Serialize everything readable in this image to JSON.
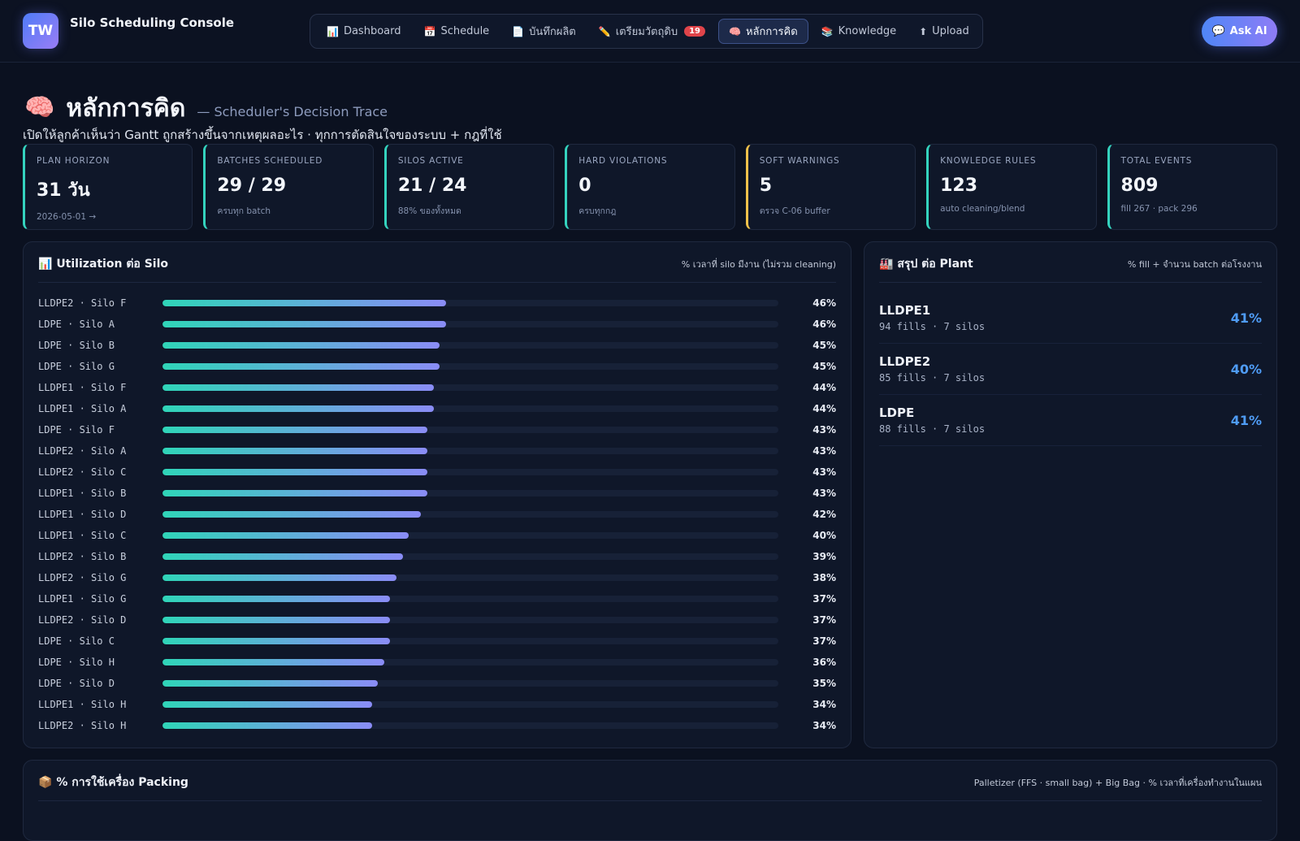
{
  "header": {
    "logo": "TW",
    "title": "Silo Scheduling Console",
    "ask_ai": "Ask AI",
    "ask_ai_icon": "💬"
  },
  "nav": [
    {
      "icon": "📊",
      "label": "Dashboard"
    },
    {
      "icon": "📅",
      "label": "Schedule"
    },
    {
      "icon": "📄",
      "label": "บันทึกผลิต"
    },
    {
      "icon": "✏️",
      "label": "เตรียมวัตถุดิบ",
      "badge": "19"
    },
    {
      "icon": "🧠",
      "label": "หลักการคิด",
      "active": true
    },
    {
      "icon": "📚",
      "label": "Knowledge"
    },
    {
      "icon": "⬆",
      "label": "Upload"
    }
  ],
  "page": {
    "icon": "🧠",
    "title": "หลักการคิด",
    "subtitle": "— Scheduler's Decision Trace",
    "description": "เปิดให้ลูกค้าเห็นว่า Gantt ถูกสร้างขึ้นจากเหตุผลอะไร · ทุกการตัดสินใจของระบบ + กฎที่ใช้"
  },
  "stats": [
    {
      "label": "PLAN HORIZON",
      "value": "31 วัน",
      "sub": "2026-05-01 →"
    },
    {
      "label": "BATCHES SCHEDULED",
      "value": "29 / 29",
      "sub": "ครบทุก batch"
    },
    {
      "label": "SILOS ACTIVE",
      "value": "21 / 24",
      "sub": "88% ของทั้งหมด"
    },
    {
      "label": "HARD VIOLATIONS",
      "value": "0",
      "sub": "ครบทุกกฎ"
    },
    {
      "label": "SOFT WARNINGS",
      "value": "5",
      "sub": "ตรวจ C-06 buffer",
      "accent": "#f2c14a"
    },
    {
      "label": "KNOWLEDGE RULES",
      "value": "123",
      "sub": "auto cleaning/blend"
    },
    {
      "label": "TOTAL EVENTS",
      "value": "809",
      "sub": "fill 267 · pack 296"
    }
  ],
  "utilization": {
    "icon": "📊",
    "title": "Utilization ต่อ Silo",
    "note": "% เวลาที่ silo มีงาน (ไม่รวม cleaning)",
    "rows": [
      {
        "label": "LLDPE2 · Silo F",
        "pct": "46%",
        "value": 46
      },
      {
        "label": "LDPE · Silo A",
        "pct": "46%",
        "value": 46
      },
      {
        "label": "LDPE · Silo B",
        "pct": "45%",
        "value": 45
      },
      {
        "label": "LDPE · Silo G",
        "pct": "45%",
        "value": 45
      },
      {
        "label": "LLDPE1 · Silo F",
        "pct": "44%",
        "value": 44
      },
      {
        "label": "LLDPE1 · Silo A",
        "pct": "44%",
        "value": 44
      },
      {
        "label": "LDPE · Silo F",
        "pct": "43%",
        "value": 43
      },
      {
        "label": "LLDPE2 · Silo A",
        "pct": "43%",
        "value": 43
      },
      {
        "label": "LLDPE2 · Silo C",
        "pct": "43%",
        "value": 43
      },
      {
        "label": "LLDPE1 · Silo B",
        "pct": "43%",
        "value": 43
      },
      {
        "label": "LLDPE1 · Silo D",
        "pct": "42%",
        "value": 42
      },
      {
        "label": "LLDPE1 · Silo C",
        "pct": "40%",
        "value": 40
      },
      {
        "label": "LLDPE2 · Silo B",
        "pct": "39%",
        "value": 39
      },
      {
        "label": "LLDPE2 · Silo G",
        "pct": "38%",
        "value": 38
      },
      {
        "label": "LLDPE1 · Silo G",
        "pct": "37%",
        "value": 37
      },
      {
        "label": "LLDPE2 · Silo D",
        "pct": "37%",
        "value": 37
      },
      {
        "label": "LDPE · Silo C",
        "pct": "37%",
        "value": 37
      },
      {
        "label": "LDPE · Silo H",
        "pct": "36%",
        "value": 36
      },
      {
        "label": "LDPE · Silo D",
        "pct": "35%",
        "value": 35
      },
      {
        "label": "LLDPE1 · Silo H",
        "pct": "34%",
        "value": 34
      },
      {
        "label": "LLDPE2 · Silo H",
        "pct": "34%",
        "value": 34
      }
    ]
  },
  "plants": {
    "icon": "🏭",
    "title": "สรุป ต่อ Plant",
    "note": "% fill + จำนวน batch ต่อโรงงาน",
    "rows": [
      {
        "name": "LLDPE1",
        "meta": "94 fills · 7 silos",
        "pct": "41%"
      },
      {
        "name": "LLDPE2",
        "meta": "85 fills · 7 silos",
        "pct": "40%"
      },
      {
        "name": "LDPE",
        "meta": "88 fills · 7 silos",
        "pct": "41%"
      }
    ]
  },
  "packing": {
    "icon": "📦",
    "title": "% การใช้เครื่อง Packing",
    "note": "Palletizer (FFS · small bag) + Big Bag · % เวลาที่เครื่องทำงานในแผน"
  }
}
